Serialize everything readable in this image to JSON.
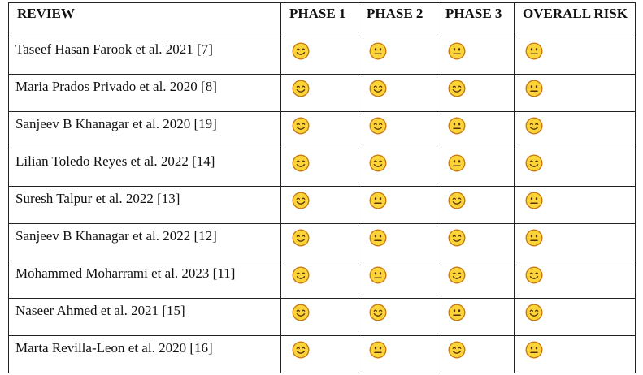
{
  "table": {
    "header": [
      "REVIEW",
      "PHASE 1",
      "PHASE 2",
      "PHASE 3",
      "OVERALL RISK"
    ],
    "rows": [
      [
        "Taseef Hasan Farook et al. 2021 [7]",
        "😊",
        "😐",
        "😐",
        "😐"
      ],
      [
        "Maria Prados Privado et al. 2020 [8]",
        "😊",
        "😊",
        "😊",
        "😐"
      ],
      [
        "Sanjeev B Khanagar et al. 2020 [19]",
        "😊",
        "😊",
        "😐",
        "😊"
      ],
      [
        "Lilian Toledo Reyes et al. 2022 [14]",
        "😊",
        "😊",
        "😐",
        "😊"
      ],
      [
        "Suresh Talpur et al. 2022 [13]",
        "😊",
        "😐",
        "😊",
        "😐"
      ],
      [
        "Sanjeev B Khanagar et al. 2022 [12]",
        "😊",
        "😐",
        "😊",
        "😐"
      ],
      [
        "Mohammed Moharrami et al. 2023 [11]",
        "😊",
        "😐",
        "😊",
        "😊"
      ],
      [
        "Naseer Ahmed et al. 2021 [15]",
        "😊",
        "😊",
        "😐",
        "😊"
      ],
      [
        "Marta Revilla-Leon et al. 2020 [16]",
        "😊",
        "😐",
        "😊",
        "😐"
      ]
    ]
  }
}
